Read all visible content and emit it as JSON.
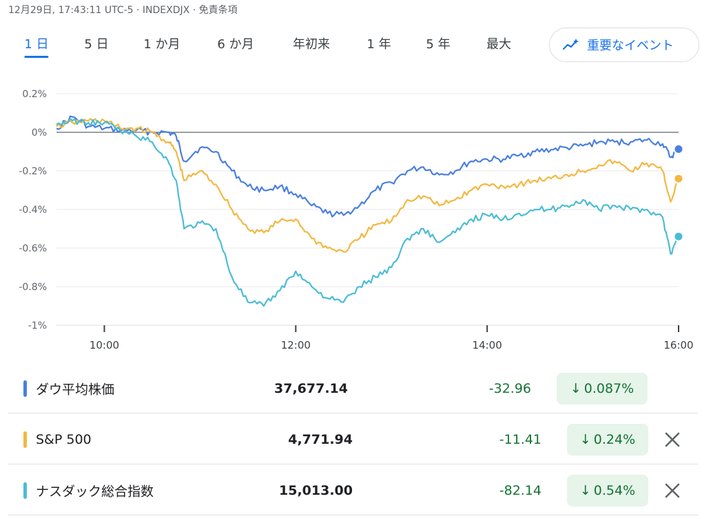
{
  "header": {
    "meta": "12月29日, 17:43:11 UTC-5 · INDEXDJX · 免責条項"
  },
  "tabs": [
    {
      "label": "1 日",
      "active": true
    },
    {
      "label": "5 日",
      "active": false
    },
    {
      "label": "1 か月",
      "active": false
    },
    {
      "label": "6 か月",
      "active": false
    },
    {
      "label": "年初来",
      "active": false
    },
    {
      "label": "1 年",
      "active": false
    },
    {
      "label": "5 年",
      "active": false
    },
    {
      "label": "最大",
      "active": false
    }
  ],
  "events_button": {
    "label": "重要なイベント",
    "icon": "sparkline-icon"
  },
  "colors": {
    "dow": "#4a7fe0",
    "sp500": "#f4b740",
    "nasdaq": "#4bbcd6",
    "positive_badge_bg": "#e6f4ea",
    "change_text": "#137333",
    "baseline": "#5f6368",
    "grid": "#e8eaed"
  },
  "chart_data": {
    "type": "line",
    "x_range": [
      "09:30",
      "16:00"
    ],
    "xticks": [
      "10:00",
      "12:00",
      "14:00",
      "16:00"
    ],
    "ylim": [
      -1.0,
      0.2
    ],
    "yticks": [
      {
        "value": 0.2,
        "label": "0.2%"
      },
      {
        "value": 0.0,
        "label": "0%"
      },
      {
        "value": -0.2,
        "label": "-0.2%"
      },
      {
        "value": -0.4,
        "label": "-0.4%"
      },
      {
        "value": -0.6,
        "label": "-0.6%"
      },
      {
        "value": -0.8,
        "label": "-0.8%"
      },
      {
        "value": -1.0,
        "label": "-1%"
      }
    ],
    "grid": true,
    "baseline": 0.0,
    "series": [
      {
        "key": "dow",
        "x": [
          "09:30",
          "09:40",
          "09:50",
          "10:00",
          "10:10",
          "10:20",
          "10:30",
          "10:40",
          "10:45",
          "10:50",
          "11:00",
          "11:10",
          "11:20",
          "11:30",
          "11:40",
          "11:50",
          "12:00",
          "12:10",
          "12:20",
          "12:30",
          "12:40",
          "12:50",
          "13:00",
          "13:10",
          "13:20",
          "13:30",
          "13:40",
          "13:50",
          "14:00",
          "14:10",
          "14:20",
          "14:30",
          "14:40",
          "14:50",
          "15:00",
          "15:10",
          "15:20",
          "15:30",
          "15:40",
          "15:50",
          "15:55",
          "16:00"
        ],
        "values": [
          0.02,
          0.08,
          0.03,
          0.02,
          0.01,
          0.01,
          0.0,
          0.0,
          -0.02,
          -0.15,
          -0.08,
          -0.1,
          -0.2,
          -0.28,
          -0.3,
          -0.28,
          -0.32,
          -0.38,
          -0.42,
          -0.43,
          -0.38,
          -0.3,
          -0.26,
          -0.2,
          -0.18,
          -0.22,
          -0.2,
          -0.15,
          -0.14,
          -0.14,
          -0.12,
          -0.1,
          -0.09,
          -0.08,
          -0.07,
          -0.05,
          -0.05,
          -0.05,
          -0.04,
          -0.06,
          -0.13,
          -0.087
        ]
      },
      {
        "key": "sp500",
        "x": [
          "09:30",
          "09:40",
          "09:50",
          "10:00",
          "10:10",
          "10:20",
          "10:30",
          "10:40",
          "10:45",
          "10:50",
          "11:00",
          "11:10",
          "11:20",
          "11:30",
          "11:40",
          "11:50",
          "12:00",
          "12:10",
          "12:20",
          "12:30",
          "12:40",
          "12:50",
          "13:00",
          "13:10",
          "13:20",
          "13:30",
          "13:40",
          "13:50",
          "14:00",
          "14:10",
          "14:20",
          "14:30",
          "14:40",
          "14:50",
          "15:00",
          "15:10",
          "15:20",
          "15:30",
          "15:40",
          "15:50",
          "15:55",
          "16:00"
        ],
        "values": [
          0.03,
          0.05,
          0.06,
          0.06,
          0.02,
          0.02,
          0.0,
          -0.05,
          -0.1,
          -0.25,
          -0.2,
          -0.27,
          -0.4,
          -0.5,
          -0.52,
          -0.46,
          -0.45,
          -0.55,
          -0.6,
          -0.62,
          -0.55,
          -0.48,
          -0.46,
          -0.35,
          -0.33,
          -0.38,
          -0.35,
          -0.3,
          -0.27,
          -0.28,
          -0.27,
          -0.25,
          -0.24,
          -0.22,
          -0.2,
          -0.17,
          -0.15,
          -0.2,
          -0.16,
          -0.2,
          -0.36,
          -0.24
        ]
      },
      {
        "key": "nasdaq",
        "x": [
          "09:30",
          "09:40",
          "09:50",
          "10:00",
          "10:10",
          "10:20",
          "10:30",
          "10:40",
          "10:45",
          "10:50",
          "11:00",
          "11:10",
          "11:20",
          "11:30",
          "11:40",
          "11:50",
          "12:00",
          "12:10",
          "12:20",
          "12:30",
          "12:40",
          "12:50",
          "13:00",
          "13:10",
          "13:20",
          "13:30",
          "13:40",
          "13:50",
          "14:00",
          "14:10",
          "14:20",
          "14:30",
          "14:40",
          "14:50",
          "15:00",
          "15:10",
          "15:20",
          "15:30",
          "15:40",
          "15:50",
          "15:55",
          "16:00"
        ],
        "values": [
          0.04,
          0.06,
          0.05,
          0.05,
          0.01,
          -0.02,
          -0.05,
          -0.15,
          -0.25,
          -0.5,
          -0.47,
          -0.5,
          -0.75,
          -0.88,
          -0.9,
          -0.82,
          -0.72,
          -0.8,
          -0.86,
          -0.88,
          -0.8,
          -0.75,
          -0.7,
          -0.55,
          -0.5,
          -0.57,
          -0.52,
          -0.45,
          -0.43,
          -0.45,
          -0.42,
          -0.4,
          -0.4,
          -0.38,
          -0.35,
          -0.4,
          -0.38,
          -0.4,
          -0.4,
          -0.44,
          -0.63,
          -0.54
        ]
      }
    ]
  },
  "quotes": [
    {
      "key": "dow",
      "name": "ダウ平均株価",
      "price": "37,677.14",
      "change": "-32.96",
      "pct": "0.087%",
      "removable": false
    },
    {
      "key": "sp500",
      "name": "S&P 500",
      "price": "4,771.94",
      "change": "-11.41",
      "pct": "0.24%",
      "removable": true
    },
    {
      "key": "nasdaq",
      "name": "ナスダック総合指数",
      "price": "15,013.00",
      "change": "-82.14",
      "pct": "0.54%",
      "removable": true
    }
  ]
}
